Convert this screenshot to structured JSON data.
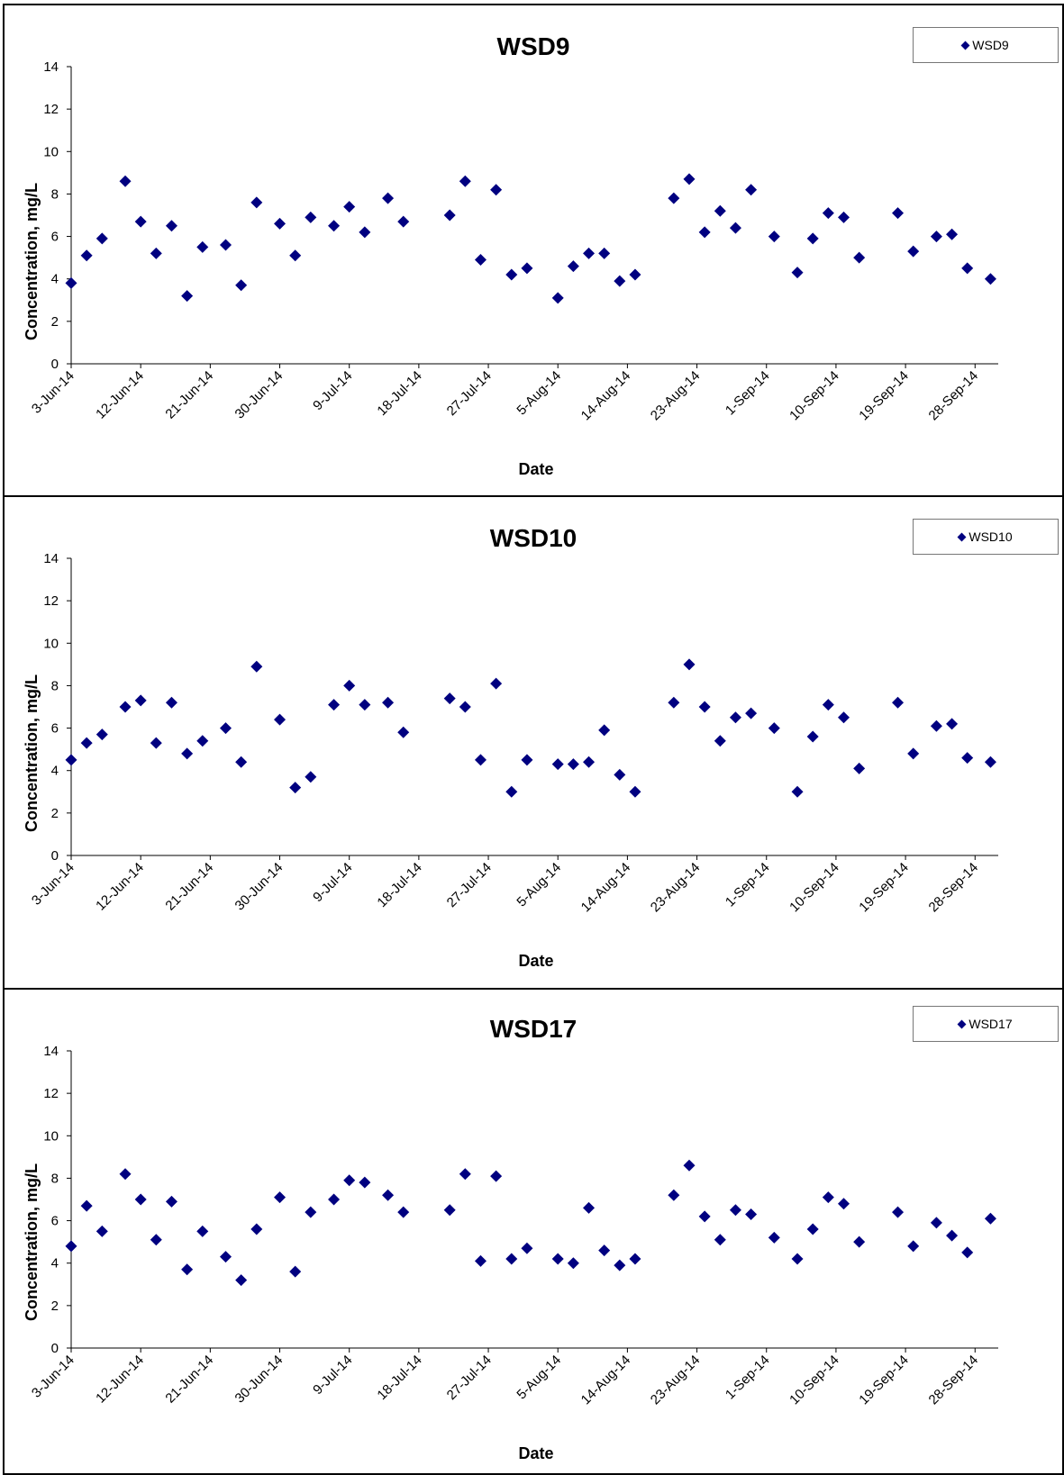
{
  "charts_meta": {
    "x_start_date": "2014-06-03",
    "x_end_date": "2014-10-01",
    "tick_step_days": 9
  },
  "chart_data": [
    {
      "type": "scatter",
      "title": "WSD9",
      "xlabel": "Date",
      "ylabel": "Concentration, mg/L",
      "ylim": [
        0,
        14
      ],
      "yticks": [
        "0",
        "2",
        "4",
        "6",
        "8",
        "10",
        "12",
        "14"
      ],
      "xticks": [
        "3-Jun-14",
        "12-Jun-14",
        "21-Jun-14",
        "30-Jun-14",
        "9-Jul-14",
        "18-Jul-14",
        "27-Jul-14",
        "5-Aug-14",
        "14-Aug-14",
        "23-Aug-14",
        "1-Sep-14",
        "10-Sep-14",
        "19-Sep-14",
        "28-Sep-14"
      ],
      "legend": "top-right",
      "series": [
        {
          "name": "WSD9",
          "color": "#000080",
          "points": [
            [
              "2014-06-03",
              3.8
            ],
            [
              "2014-06-05",
              5.1
            ],
            [
              "2014-06-07",
              5.9
            ],
            [
              "2014-06-10",
              8.6
            ],
            [
              "2014-06-12",
              6.7
            ],
            [
              "2014-06-14",
              5.2
            ],
            [
              "2014-06-16",
              6.5
            ],
            [
              "2014-06-18",
              3.2
            ],
            [
              "2014-06-20",
              5.5
            ],
            [
              "2014-06-23",
              5.6
            ],
            [
              "2014-06-25",
              3.7
            ],
            [
              "2014-06-27",
              7.6
            ],
            [
              "2014-06-30",
              6.6
            ],
            [
              "2014-07-02",
              5.1
            ],
            [
              "2014-07-04",
              6.9
            ],
            [
              "2014-07-07",
              6.5
            ],
            [
              "2014-07-09",
              7.4
            ],
            [
              "2014-07-11",
              6.2
            ],
            [
              "2014-07-14",
              7.8
            ],
            [
              "2014-07-16",
              6.7
            ],
            [
              "2014-07-22",
              7.0
            ],
            [
              "2014-07-24",
              8.6
            ],
            [
              "2014-07-26",
              4.9
            ],
            [
              "2014-07-28",
              8.2
            ],
            [
              "2014-07-30",
              4.2
            ],
            [
              "2014-08-01",
              4.5
            ],
            [
              "2014-08-05",
              3.1
            ],
            [
              "2014-08-07",
              4.6
            ],
            [
              "2014-08-09",
              5.2
            ],
            [
              "2014-08-11",
              5.2
            ],
            [
              "2014-08-13",
              3.9
            ],
            [
              "2014-08-15",
              4.2
            ],
            [
              "2014-08-20",
              7.8
            ],
            [
              "2014-08-22",
              8.7
            ],
            [
              "2014-08-24",
              6.2
            ],
            [
              "2014-08-26",
              7.2
            ],
            [
              "2014-08-28",
              6.4
            ],
            [
              "2014-08-30",
              8.2
            ],
            [
              "2014-09-02",
              6.0
            ],
            [
              "2014-09-05",
              4.3
            ],
            [
              "2014-09-07",
              5.9
            ],
            [
              "2014-09-09",
              7.1
            ],
            [
              "2014-09-11",
              6.9
            ],
            [
              "2014-09-13",
              5.0
            ],
            [
              "2014-09-18",
              7.1
            ],
            [
              "2014-09-20",
              5.3
            ],
            [
              "2014-09-23",
              6.0
            ],
            [
              "2014-09-25",
              6.1
            ],
            [
              "2014-09-27",
              4.5
            ],
            [
              "2014-09-30",
              4.0
            ]
          ]
        }
      ]
    },
    {
      "type": "scatter",
      "title": "WSD10",
      "xlabel": "Date",
      "ylabel": "Concentration, mg/L",
      "ylim": [
        0,
        14
      ],
      "yticks": [
        "0",
        "2",
        "4",
        "6",
        "8",
        "10",
        "12",
        "14"
      ],
      "xticks": [
        "3-Jun-14",
        "12-Jun-14",
        "21-Jun-14",
        "30-Jun-14",
        "9-Jul-14",
        "18-Jul-14",
        "27-Jul-14",
        "5-Aug-14",
        "14-Aug-14",
        "23-Aug-14",
        "1-Sep-14",
        "10-Sep-14",
        "19-Sep-14",
        "28-Sep-14"
      ],
      "legend": "top-right",
      "series": [
        {
          "name": "WSD10",
          "color": "#000080",
          "points": [
            [
              "2014-06-03",
              4.5
            ],
            [
              "2014-06-05",
              5.3
            ],
            [
              "2014-06-07",
              5.7
            ],
            [
              "2014-06-10",
              7.0
            ],
            [
              "2014-06-12",
              7.3
            ],
            [
              "2014-06-14",
              5.3
            ],
            [
              "2014-06-16",
              7.2
            ],
            [
              "2014-06-18",
              4.8
            ],
            [
              "2014-06-20",
              5.4
            ],
            [
              "2014-06-23",
              6.0
            ],
            [
              "2014-06-25",
              4.4
            ],
            [
              "2014-06-27",
              8.9
            ],
            [
              "2014-06-30",
              6.4
            ],
            [
              "2014-07-02",
              3.2
            ],
            [
              "2014-07-04",
              3.7
            ],
            [
              "2014-07-07",
              7.1
            ],
            [
              "2014-07-09",
              8.0
            ],
            [
              "2014-07-11",
              7.1
            ],
            [
              "2014-07-14",
              7.2
            ],
            [
              "2014-07-16",
              5.8
            ],
            [
              "2014-07-22",
              7.4
            ],
            [
              "2014-07-24",
              7.0
            ],
            [
              "2014-07-26",
              4.5
            ],
            [
              "2014-07-28",
              8.1
            ],
            [
              "2014-07-30",
              3.0
            ],
            [
              "2014-08-01",
              4.5
            ],
            [
              "2014-08-05",
              4.3
            ],
            [
              "2014-08-07",
              4.3
            ],
            [
              "2014-08-09",
              4.4
            ],
            [
              "2014-08-11",
              5.9
            ],
            [
              "2014-08-13",
              3.8
            ],
            [
              "2014-08-15",
              3.0
            ],
            [
              "2014-08-20",
              7.2
            ],
            [
              "2014-08-22",
              9.0
            ],
            [
              "2014-08-24",
              7.0
            ],
            [
              "2014-08-26",
              5.4
            ],
            [
              "2014-08-28",
              6.5
            ],
            [
              "2014-08-30",
              6.7
            ],
            [
              "2014-09-02",
              6.0
            ],
            [
              "2014-09-05",
              3.0
            ],
            [
              "2014-09-07",
              5.6
            ],
            [
              "2014-09-09",
              7.1
            ],
            [
              "2014-09-11",
              6.5
            ],
            [
              "2014-09-13",
              4.1
            ],
            [
              "2014-09-18",
              7.2
            ],
            [
              "2014-09-20",
              4.8
            ],
            [
              "2014-09-23",
              6.1
            ],
            [
              "2014-09-25",
              6.2
            ],
            [
              "2014-09-27",
              4.6
            ],
            [
              "2014-09-30",
              4.4
            ]
          ]
        }
      ]
    },
    {
      "type": "scatter",
      "title": "WSD17",
      "xlabel": "Date",
      "ylabel": "Concentration, mg/L",
      "ylim": [
        0,
        14
      ],
      "yticks": [
        "0",
        "2",
        "4",
        "6",
        "8",
        "10",
        "12",
        "14"
      ],
      "xticks": [
        "3-Jun-14",
        "12-Jun-14",
        "21-Jun-14",
        "30-Jun-14",
        "9-Jul-14",
        "18-Jul-14",
        "27-Jul-14",
        "5-Aug-14",
        "14-Aug-14",
        "23-Aug-14",
        "1-Sep-14",
        "10-Sep-14",
        "19-Sep-14",
        "28-Sep-14"
      ],
      "legend": "top-right",
      "series": [
        {
          "name": "WSD17",
          "color": "#000080",
          "points": [
            [
              "2014-06-03",
              4.8
            ],
            [
              "2014-06-05",
              6.7
            ],
            [
              "2014-06-07",
              5.5
            ],
            [
              "2014-06-10",
              8.2
            ],
            [
              "2014-06-12",
              7.0
            ],
            [
              "2014-06-14",
              5.1
            ],
            [
              "2014-06-16",
              6.9
            ],
            [
              "2014-06-18",
              3.7
            ],
            [
              "2014-06-20",
              5.5
            ],
            [
              "2014-06-23",
              4.3
            ],
            [
              "2014-06-25",
              3.2
            ],
            [
              "2014-06-27",
              5.6
            ],
            [
              "2014-06-30",
              7.1
            ],
            [
              "2014-07-02",
              3.6
            ],
            [
              "2014-07-04",
              6.4
            ],
            [
              "2014-07-07",
              7.0
            ],
            [
              "2014-07-09",
              7.9
            ],
            [
              "2014-07-11",
              7.8
            ],
            [
              "2014-07-14",
              7.2
            ],
            [
              "2014-07-16",
              6.4
            ],
            [
              "2014-07-22",
              6.5
            ],
            [
              "2014-07-24",
              8.2
            ],
            [
              "2014-07-26",
              4.1
            ],
            [
              "2014-07-28",
              8.1
            ],
            [
              "2014-07-30",
              4.2
            ],
            [
              "2014-08-01",
              4.7
            ],
            [
              "2014-08-05",
              4.2
            ],
            [
              "2014-08-07",
              4.0
            ],
            [
              "2014-08-09",
              6.6
            ],
            [
              "2014-08-11",
              4.6
            ],
            [
              "2014-08-13",
              3.9
            ],
            [
              "2014-08-15",
              4.2
            ],
            [
              "2014-08-20",
              7.2
            ],
            [
              "2014-08-22",
              8.6
            ],
            [
              "2014-08-24",
              6.2
            ],
            [
              "2014-08-26",
              5.1
            ],
            [
              "2014-08-28",
              6.5
            ],
            [
              "2014-08-30",
              6.3
            ],
            [
              "2014-09-02",
              5.2
            ],
            [
              "2014-09-05",
              4.2
            ],
            [
              "2014-09-07",
              5.6
            ],
            [
              "2014-09-09",
              7.1
            ],
            [
              "2014-09-11",
              6.8
            ],
            [
              "2014-09-13",
              5.0
            ],
            [
              "2014-09-18",
              6.4
            ],
            [
              "2014-09-20",
              4.8
            ],
            [
              "2014-09-23",
              5.9
            ],
            [
              "2014-09-25",
              5.3
            ],
            [
              "2014-09-27",
              4.5
            ],
            [
              "2014-09-30",
              6.1
            ]
          ]
        }
      ]
    }
  ]
}
